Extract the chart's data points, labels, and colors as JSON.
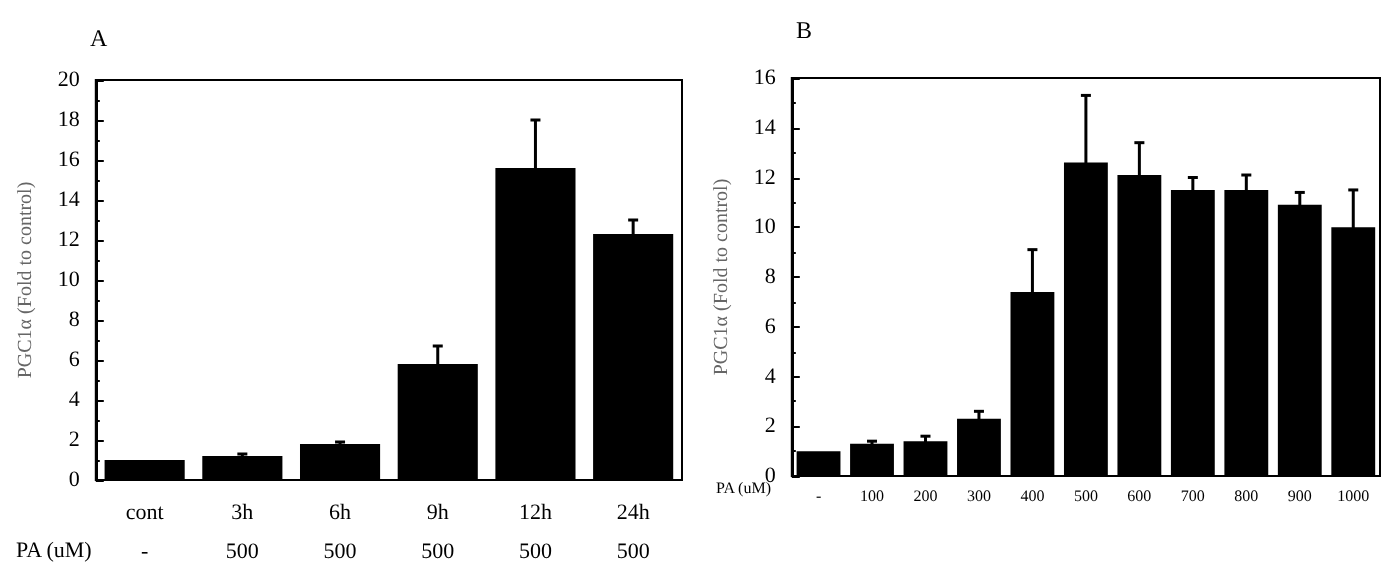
{
  "chart_data": [
    {
      "type": "bar",
      "title": "A",
      "ylabel": "PGC1α (Fold to control)",
      "xlabel": "PA (uM)",
      "categories": [
        "cont",
        "3h",
        "6h",
        "9h",
        "12h",
        "24h"
      ],
      "series": [
        {
          "color": "#000000",
          "values": [
            1.0,
            1.2,
            1.8,
            5.8,
            15.6,
            12.3
          ],
          "errors": [
            null,
            0.1,
            0.1,
            0.9,
            2.4,
            0.7
          ]
        }
      ],
      "annotations": [
        "-",
        "500",
        "500",
        "500",
        "500",
        "500"
      ],
      "ylim": [
        0,
        20
      ],
      "yticks": [
        0,
        2,
        4,
        6,
        8,
        10,
        12,
        14,
        16,
        18,
        20
      ],
      "grid": false
    },
    {
      "type": "bar",
      "title": "B",
      "ylabel": "PGC1α (Fold to control)",
      "xlabel": "PA (uM)",
      "categories": [
        "-",
        "100",
        "200",
        "300",
        "400",
        "500",
        "600",
        "700",
        "800",
        "900",
        "1000"
      ],
      "series": [
        {
          "color": "#000000",
          "values": [
            1.0,
            1.3,
            1.4,
            2.3,
            7.4,
            12.6,
            12.1,
            11.5,
            11.5,
            10.9,
            10.0
          ],
          "errors": [
            null,
            0.1,
            0.2,
            0.3,
            1.7,
            2.7,
            1.3,
            0.5,
            0.6,
            0.5,
            1.5
          ]
        }
      ],
      "ylim": [
        0,
        16
      ],
      "yticks": [
        0,
        2,
        4,
        6,
        8,
        10,
        12,
        14,
        16
      ],
      "grid": false
    }
  ]
}
